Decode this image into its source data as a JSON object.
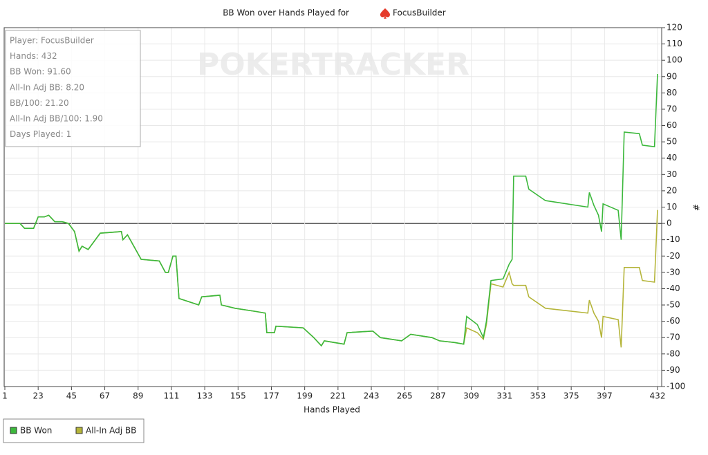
{
  "chart_data": {
    "type": "line",
    "title": "BB Won over Hands Played for",
    "title_player": "FocusBuilder",
    "watermark": "POKERTRACKER",
    "x_label": "Hands Played",
    "y_label": "#",
    "annotations": [
      "Player: FocusBuilder",
      "Hands: 432",
      "BB Won: 91.60",
      "All-In Adj BB: 8.20",
      "BB/100: 21.20",
      "All-In Adj BB/100: 1.90",
      "Days Played: 1"
    ],
    "x": [
      1,
      11,
      14,
      20,
      23,
      27,
      30,
      34,
      39,
      43,
      47,
      50,
      52,
      56,
      64,
      78,
      79,
      82,
      91,
      103,
      107,
      109,
      112,
      114,
      116,
      129,
      131,
      143,
      144,
      153,
      167,
      173,
      174,
      179,
      180,
      198,
      205,
      210,
      212,
      225,
      227,
      244,
      249,
      263,
      269,
      283,
      288,
      298,
      304,
      306,
      313,
      317,
      319,
      322,
      330,
      334,
      336,
      337,
      345,
      347,
      358,
      386,
      387,
      390,
      393,
      395,
      396,
      406,
      408,
      410,
      420,
      422,
      430,
      432
    ],
    "series": [
      {
        "name": "BB Won",
        "color": "#3cb83c",
        "values": [
          0,
          0,
          -3,
          -3,
          4,
          4,
          5,
          1,
          1,
          0,
          -5,
          -17,
          -14,
          -16,
          -6,
          -5,
          -10,
          -7,
          -22,
          -23,
          -30,
          -30,
          -20,
          -20,
          -46,
          -50,
          -45,
          -44,
          -50,
          -52,
          -54,
          -55,
          -67,
          -67,
          -63,
          -64,
          -70,
          -75,
          -72,
          -74,
          -67,
          -66,
          -70,
          -72,
          -68,
          -70,
          -72,
          -73,
          -74,
          -57,
          -62,
          -70,
          -60,
          -35,
          -34,
          -25,
          -22,
          29,
          29,
          21,
          14,
          10,
          19,
          11,
          5,
          -5,
          12,
          8,
          -10,
          56,
          55,
          48,
          47,
          91.6
        ]
      },
      {
        "name": "All-In Adj BB",
        "color": "#b5b53a",
        "values": [
          0,
          0,
          -3,
          -3,
          4,
          4,
          5,
          1,
          1,
          0,
          -5,
          -17,
          -14,
          -16,
          -6,
          -5,
          -10,
          -7,
          -22,
          -23,
          -30,
          -30,
          -20,
          -20,
          -46,
          -50,
          -45,
          -44,
          -50,
          -52,
          -54,
          -55,
          -67,
          -67,
          -63,
          -64,
          -70,
          -75,
          -72,
          -74,
          -67,
          -66,
          -70,
          -72,
          -68,
          -70,
          -72,
          -73,
          -74,
          -64,
          -67,
          -71,
          -62,
          -37,
          -39,
          -30,
          -37,
          -38,
          -38,
          -45,
          -52,
          -55,
          -47,
          -55,
          -60,
          -70,
          -57,
          -59,
          -76,
          -27,
          -27,
          -35,
          -36,
          8.2
        ]
      }
    ],
    "xlim": [
      1,
      432
    ],
    "xticks": [
      1,
      23,
      45,
      67,
      89,
      111,
      133,
      155,
      177,
      199,
      221,
      243,
      265,
      287,
      309,
      331,
      353,
      375,
      397,
      432
    ],
    "ylim": [
      -100,
      120
    ],
    "yticks": [
      -100,
      -90,
      -80,
      -70,
      -60,
      -50,
      -40,
      -30,
      -20,
      -10,
      0,
      10,
      20,
      30,
      40,
      50,
      60,
      70,
      80,
      90,
      100,
      110,
      120
    ],
    "grid": true
  }
}
